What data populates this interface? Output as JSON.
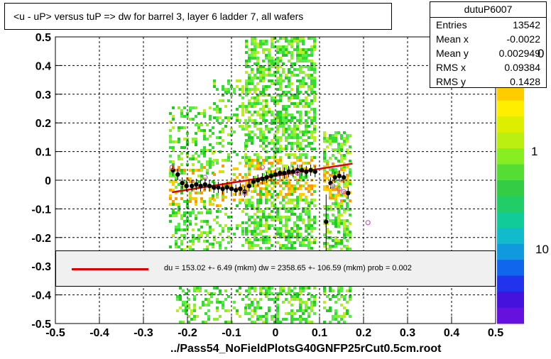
{
  "title": "<u - uP>       versus  tuP =>  dw for barrel 3, layer 6 ladder 7, all wafers",
  "footer": "../Pass54_NoFieldPlotsG40GNFP25rCut0.5cm.root",
  "stats": {
    "name": "dutuP6007",
    "rows": [
      {
        "label": "Entries",
        "value": "13542"
      },
      {
        "label": "Mean x",
        "value": "-0.0022"
      },
      {
        "label": "Mean y",
        "value": "0.002949"
      },
      {
        "label": "RMS x",
        "value": "0.09384"
      },
      {
        "label": "RMS y",
        "value": "0.1428"
      }
    ]
  },
  "fit_legend": "du =  153.02 +-  6.49 (mkm) dw = 2358.65 +- 106.59 (mkm) prob = 0.002",
  "z_axis": {
    "labels": [
      "0",
      "1",
      "10"
    ]
  },
  "colors": {
    "fit_line": "#e00000",
    "profile_marker": "#000000",
    "open_marker": "#cc55cc"
  },
  "chart_data": {
    "type": "heatmap",
    "title": "<u - uP>       versus  tuP =>  dw for barrel 3, layer 6 ladder 7, all wafers",
    "xlabel": "",
    "ylabel": "",
    "xlim": [
      -0.5,
      0.5
    ],
    "ylim": [
      -0.5,
      0.5
    ],
    "x_ticks": [
      "-0.5",
      "-0.4",
      "-0.3",
      "-0.2",
      "-0.1",
      "0",
      "0.1",
      "0.2",
      "0.3",
      "0.4",
      "0.5"
    ],
    "y_ticks": [
      "-0.5",
      "-0.4",
      "-0.3",
      "-0.2",
      "-0.1",
      "0",
      "0.1",
      "0.2",
      "0.3",
      "0.4",
      "0.5"
    ],
    "grid": true,
    "fit": {
      "x_start": -0.235,
      "y_start": -0.042,
      "x_end": 0.175,
      "y_end": 0.058
    },
    "profile_points": [
      {
        "x": -0.233,
        "y": 0.035
      },
      {
        "x": -0.222,
        "y": 0.02
      },
      {
        "x": -0.212,
        "y": -0.01
      },
      {
        "x": -0.202,
        "y": -0.02
      },
      {
        "x": -0.19,
        "y": -0.02
      },
      {
        "x": -0.18,
        "y": -0.015
      },
      {
        "x": -0.17,
        "y": -0.02
      },
      {
        "x": -0.16,
        "y": -0.015
      },
      {
        "x": -0.15,
        "y": -0.02
      },
      {
        "x": -0.14,
        "y": -0.025
      },
      {
        "x": -0.13,
        "y": -0.025
      },
      {
        "x": -0.12,
        "y": -0.03
      },
      {
        "x": -0.11,
        "y": -0.025
      },
      {
        "x": -0.1,
        "y": -0.03
      },
      {
        "x": -0.09,
        "y": -0.035
      },
      {
        "x": -0.08,
        "y": -0.03
      },
      {
        "x": -0.07,
        "y": -0.04
      },
      {
        "x": -0.06,
        "y": -0.02
      },
      {
        "x": -0.05,
        "y": -0.005
      },
      {
        "x": -0.04,
        "y": 0.0
      },
      {
        "x": -0.03,
        "y": 0.005
      },
      {
        "x": -0.02,
        "y": 0.01
      },
      {
        "x": -0.01,
        "y": 0.015
      },
      {
        "x": 0.0,
        "y": 0.02
      },
      {
        "x": 0.01,
        "y": 0.025
      },
      {
        "x": 0.02,
        "y": 0.025
      },
      {
        "x": 0.03,
        "y": 0.03
      },
      {
        "x": 0.04,
        "y": 0.03
      },
      {
        "x": 0.05,
        "y": 0.035
      },
      {
        "x": 0.06,
        "y": 0.035
      },
      {
        "x": 0.07,
        "y": 0.03
      },
      {
        "x": 0.08,
        "y": 0.035
      },
      {
        "x": 0.09,
        "y": 0.03
      },
      {
        "x": 0.115,
        "y": -0.145
      },
      {
        "x": 0.125,
        "y": -0.01
      },
      {
        "x": 0.135,
        "y": 0.01
      },
      {
        "x": 0.145,
        "y": 0.015
      },
      {
        "x": 0.155,
        "y": 0.01
      },
      {
        "x": 0.165,
        "y": -0.045
      }
    ],
    "open_points": [
      {
        "x": -0.235,
        "y": 0.045
      },
      {
        "x": -0.16,
        "y": 0.01
      },
      {
        "x": -0.07,
        "y": -0.045
      },
      {
        "x": -0.03,
        "y": 0.045
      },
      {
        "x": 0.05,
        "y": 0.025
      },
      {
        "x": 0.13,
        "y": -0.02
      },
      {
        "x": 0.145,
        "y": -0.03
      },
      {
        "x": 0.155,
        "y": -0.04
      },
      {
        "x": 0.21,
        "y": -0.148
      }
    ]
  }
}
